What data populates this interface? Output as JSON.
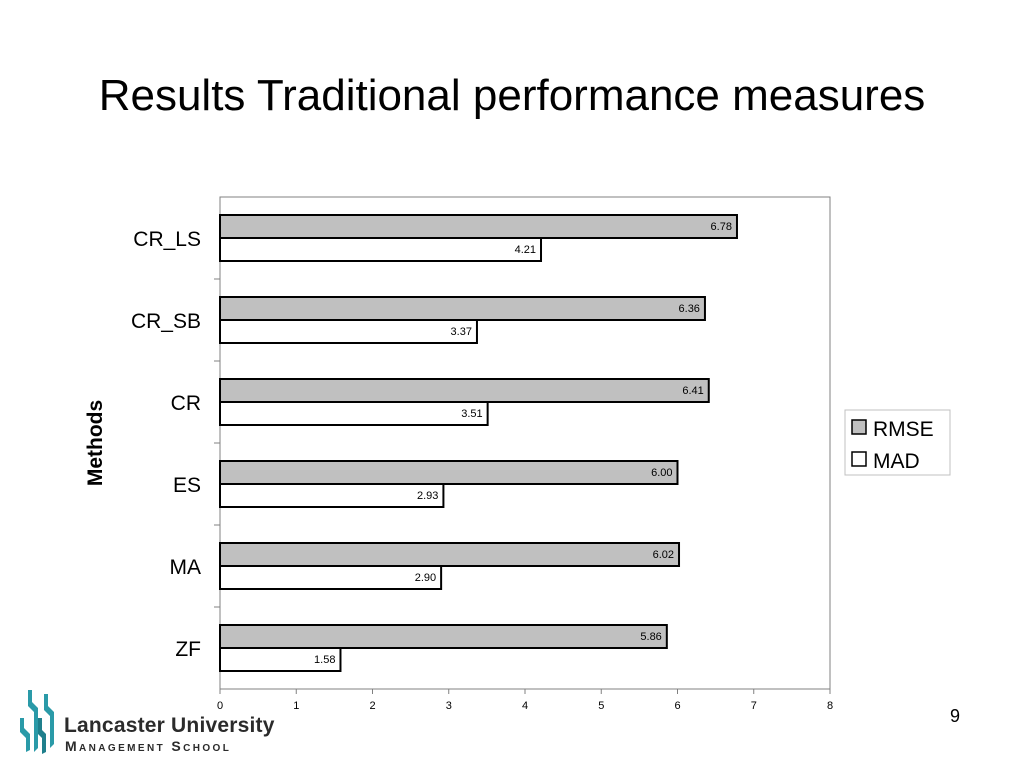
{
  "slide": {
    "title": "Results Traditional performance measures",
    "page_number": "9"
  },
  "logo": {
    "line1": "Lancaster University",
    "line2": "Management School"
  },
  "colors": {
    "rmse_fill": "#c0c0c0",
    "mad_fill": "#ffffff",
    "bar_stroke": "#000000",
    "plot_border": "#808080"
  },
  "chart_data": {
    "type": "bar",
    "orientation": "horizontal",
    "title": "",
    "xlabel": "",
    "ylabel": "Methods",
    "categories": [
      "CR_LS",
      "CR_SB",
      "CR",
      "ES",
      "MA",
      "ZF"
    ],
    "category_labels": [
      "CR_LS",
      "CR_SB",
      "CR",
      "ES",
      "MA",
      "ZF"
    ],
    "series": [
      {
        "name": "RMSE",
        "values": [
          6.78,
          6.36,
          6.41,
          6.0,
          6.02,
          5.86
        ],
        "labels": [
          "6.78",
          "6.36",
          "6.41",
          "6.00",
          "6.02",
          "5.86"
        ]
      },
      {
        "name": "MAD",
        "values": [
          4.21,
          3.37,
          3.51,
          2.93,
          2.9,
          1.58
        ],
        "labels": [
          "4.21",
          "3.37",
          "3.51",
          "2.93",
          "2.90",
          "1.58"
        ]
      }
    ],
    "xlim": [
      0,
      8
    ],
    "xticks": [
      "0",
      "1",
      "2",
      "3",
      "4",
      "5",
      "6",
      "7",
      "8"
    ],
    "grid": false,
    "legend_position": "right"
  }
}
